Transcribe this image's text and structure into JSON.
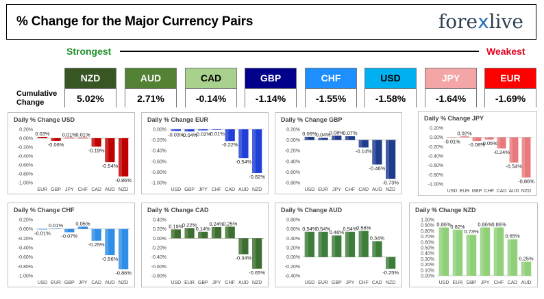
{
  "header": {
    "title": "% Change for the Major Currency Pairs",
    "logo_left": "fore",
    "logo_x": "x",
    "logo_right": "live"
  },
  "strength": {
    "strongest": "Strongest",
    "weakest": "Weakest"
  },
  "cumulative_label": "Cumulative Change",
  "tiles": [
    {
      "name": "NZD",
      "value": "5.02%",
      "color": "#375623",
      "text": "#ffffff"
    },
    {
      "name": "AUD",
      "value": "2.71%",
      "color": "#548235",
      "text": "#ffffff"
    },
    {
      "name": "CAD",
      "value": "-0.14%",
      "color": "#a9d18e",
      "text": "#000000"
    },
    {
      "name": "GBP",
      "value": "-1.14%",
      "color": "#00008b",
      "text": "#ffffff"
    },
    {
      "name": "CHF",
      "value": "-1.55%",
      "color": "#1e8fff",
      "text": "#ffffff"
    },
    {
      "name": "USD",
      "value": "-1.58%",
      "color": "#00b0f0",
      "text": "#000000"
    },
    {
      "name": "JPY",
      "value": "-1.64%",
      "color": "#f4a6a6",
      "text": "#ffffff"
    },
    {
      "name": "EUR",
      "value": "-1.69%",
      "color": "#ff0000",
      "text": "#ffffff"
    }
  ],
  "chart_data": [
    {
      "type": "bar",
      "title": "Daily % Change USD",
      "color": "#c00000",
      "categories": [
        "EUR",
        "GBP",
        "JPY",
        "CHF",
        "CAD",
        "AUD",
        "NZD"
      ],
      "values": [
        0.03,
        -0.06,
        0.01,
        0.01,
        -0.19,
        -0.54,
        -0.86
      ],
      "labels": [
        "0.03%",
        "-0.06%",
        "0.01%",
        "0.01%",
        "-0.19%",
        "-0.54%",
        "-0.86%"
      ],
      "ylim": [
        -1.0,
        0.2
      ],
      "ticks": [
        "0.20%",
        "0.00%",
        "-0.20%",
        "-0.40%",
        "-0.60%",
        "-0.80%",
        "-1.00%"
      ]
    },
    {
      "type": "bar",
      "title": "Daily % Change EUR",
      "color": "#1f3fd6",
      "categories": [
        "USD",
        "GBP",
        "JPY",
        "CHF",
        "CAD",
        "AUD",
        "NZD"
      ],
      "values": [
        -0.03,
        -0.04,
        -0.02,
        -0.01,
        -0.22,
        -0.54,
        -0.82
      ],
      "labels": [
        "-0.03%",
        "-0.04%",
        "-0.02%",
        "-0.01%",
        "-0.22%",
        "-0.54%",
        "-0.82%"
      ],
      "ylim": [
        -1.0,
        0.0
      ],
      "ticks": [
        "0.00%",
        "-0.20%",
        "-0.40%",
        "-0.60%",
        "-0.80%",
        "-1.00%"
      ]
    },
    {
      "type": "bar",
      "title": "Daily % Change GBP",
      "color": "#1f3b8c",
      "categories": [
        "USD",
        "EUR",
        "JPY",
        "CHF",
        "CAD",
        "AUD",
        "NZD"
      ],
      "values": [
        0.06,
        0.04,
        0.08,
        0.07,
        -0.14,
        -0.46,
        -0.73
      ],
      "labels": [
        "0.06%",
        "0.04%",
        "0.08%",
        "0.07%",
        "-0.14%",
        "-0.46%",
        "-0.73%"
      ],
      "ylim": [
        -0.8,
        0.2
      ],
      "ticks": [
        "0.20%",
        "0.00%",
        "-0.20%",
        "-0.40%",
        "-0.60%",
        "-0.80%"
      ]
    },
    {
      "type": "bar",
      "title": "Daily % Change JPY",
      "color": "#e8797c",
      "categories": [
        "USD",
        "EUR",
        "GBP",
        "CHF",
        "CAD",
        "AUD",
        "NZD"
      ],
      "values": [
        -0.01,
        0.02,
        -0.08,
        -0.05,
        -0.24,
        -0.54,
        -0.86
      ],
      "labels": [
        "-0.01%",
        "0.02%",
        "-0.08%",
        "-0.05%",
        "-0.24%",
        "-0.54%",
        "-0.86%"
      ],
      "ylim": [
        -1.0,
        0.2
      ],
      "ticks": [
        "0.20%",
        "0.00%",
        "-0.20%",
        "-0.40%",
        "-0.60%",
        "-0.80%",
        "-1.00%"
      ]
    },
    {
      "type": "bar",
      "title": "Daily % Change CHF",
      "color": "#2f8ee8",
      "categories": [
        "USD",
        "EUR",
        "GBP",
        "JPY",
        "CAD",
        "AUD",
        "NZD"
      ],
      "values": [
        -0.01,
        0.01,
        -0.07,
        0.05,
        -0.25,
        -0.56,
        -0.86
      ],
      "labels": [
        "-0.01%",
        "0.01%",
        "-0.07%",
        "0.05%",
        "-0.25%",
        "-0.56%",
        "-0.86%"
      ],
      "ylim": [
        -1.0,
        0.2
      ],
      "ticks": [
        "0.20%",
        "0.00%",
        "-0.20%",
        "-0.40%",
        "-0.60%",
        "-0.80%",
        "-1.00%"
      ]
    },
    {
      "type": "bar",
      "title": "Daily % Change CAD",
      "color": "#3c6e2f",
      "categories": [
        "USD",
        "EUR",
        "GBP",
        "JPY",
        "CHF",
        "AUD",
        "NZD"
      ],
      "values": [
        0.19,
        0.22,
        0.14,
        0.24,
        0.25,
        -0.34,
        -0.65
      ],
      "labels": [
        "0.19%",
        "0.22%",
        "0.14%",
        "0.24%",
        "0.25%",
        "-0.34%",
        "-0.65%"
      ],
      "ylim": [
        -0.8,
        0.4
      ],
      "ticks": [
        "0.40%",
        "0.20%",
        "0.00%",
        "-0.20%",
        "-0.40%",
        "-0.60%",
        "-0.80%"
      ]
    },
    {
      "type": "bar",
      "title": "Daily % Change AUD",
      "color": "#3c7d3a",
      "categories": [
        "USD",
        "EUR",
        "GBP",
        "JPY",
        "CHF",
        "CAD",
        "NZD"
      ],
      "values": [
        0.54,
        0.54,
        0.46,
        0.54,
        0.56,
        0.34,
        -0.25
      ],
      "labels": [
        "0.54%",
        "0.54%",
        "0.46%",
        "0.54%",
        "0.56%",
        "0.34%",
        "-0.25%"
      ],
      "ylim": [
        -0.4,
        0.8
      ],
      "ticks": [
        "0.80%",
        "0.60%",
        "0.40%",
        "0.20%",
        "0.00%",
        "-0.20%",
        "-0.40%"
      ]
    },
    {
      "type": "bar",
      "title": "Daily % Change NZD",
      "color": "#8fd078",
      "categories": [
        "USD",
        "EUR",
        "GBP",
        "JPY",
        "CHF",
        "CAD",
        "AUD"
      ],
      "values": [
        0.86,
        0.82,
        0.73,
        0.86,
        0.86,
        0.65,
        0.25
      ],
      "labels": [
        "0.86%",
        "0.82%",
        "0.73%",
        "0.86%",
        "0.86%",
        "0.65%",
        "0.25%"
      ],
      "ylim": [
        0.0,
        1.0
      ],
      "ticks": [
        "1.00%",
        "0.90%",
        "0.80%",
        "0.70%",
        "0.60%",
        "0.50%",
        "0.40%",
        "0.30%",
        "0.20%",
        "0.10%",
        "0.00%"
      ]
    }
  ]
}
